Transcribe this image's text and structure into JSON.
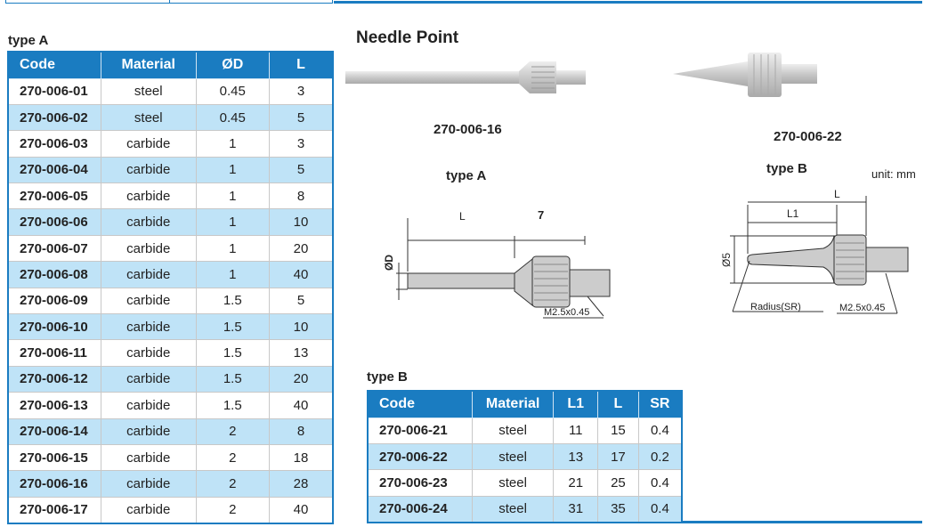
{
  "title": "Needle Point",
  "unit": "unit: mm",
  "product_images": [
    {
      "code": "270-006-16"
    },
    {
      "code": "270-006-22"
    }
  ],
  "diagram_a": {
    "title": "type A",
    "L": "L",
    "seven": "7",
    "D": "ØD",
    "thread": "M2.5x0.45"
  },
  "diagram_b": {
    "title": "type B",
    "L": "L",
    "L1": "L1",
    "dia": "Ø5",
    "radius": "Radius(SR)",
    "thread": "M2.5x0.45"
  },
  "table_a": {
    "title": "type A",
    "headers": [
      "Code",
      "Material",
      "ØD",
      "L"
    ],
    "rows": [
      [
        "270-006-01",
        "steel",
        "0.45",
        "3"
      ],
      [
        "270-006-02",
        "steel",
        "0.45",
        "5"
      ],
      [
        "270-006-03",
        "carbide",
        "1",
        "3"
      ],
      [
        "270-006-04",
        "carbide",
        "1",
        "5"
      ],
      [
        "270-006-05",
        "carbide",
        "1",
        "8"
      ],
      [
        "270-006-06",
        "carbide",
        "1",
        "10"
      ],
      [
        "270-006-07",
        "carbide",
        "1",
        "20"
      ],
      [
        "270-006-08",
        "carbide",
        "1",
        "40"
      ],
      [
        "270-006-09",
        "carbide",
        "1.5",
        "5"
      ],
      [
        "270-006-10",
        "carbide",
        "1.5",
        "10"
      ],
      [
        "270-006-11",
        "carbide",
        "1.5",
        "13"
      ],
      [
        "270-006-12",
        "carbide",
        "1.5",
        "20"
      ],
      [
        "270-006-13",
        "carbide",
        "1.5",
        "40"
      ],
      [
        "270-006-14",
        "carbide",
        "2",
        "8"
      ],
      [
        "270-006-15",
        "carbide",
        "2",
        "18"
      ],
      [
        "270-006-16",
        "carbide",
        "2",
        "28"
      ],
      [
        "270-006-17",
        "carbide",
        "2",
        "40"
      ]
    ]
  },
  "table_b": {
    "title": "type B",
    "headers": [
      "Code",
      "Material",
      "L1",
      "L",
      "SR"
    ],
    "rows": [
      [
        "270-006-21",
        "steel",
        "11",
        "15",
        "0.4"
      ],
      [
        "270-006-22",
        "steel",
        "13",
        "17",
        "0.2"
      ],
      [
        "270-006-23",
        "steel",
        "21",
        "25",
        "0.4"
      ],
      [
        "270-006-24",
        "steel",
        "31",
        "35",
        "0.4"
      ]
    ]
  },
  "colors": {
    "accent": "#1a7cc1",
    "row_alt": "#bfe3f7"
  }
}
